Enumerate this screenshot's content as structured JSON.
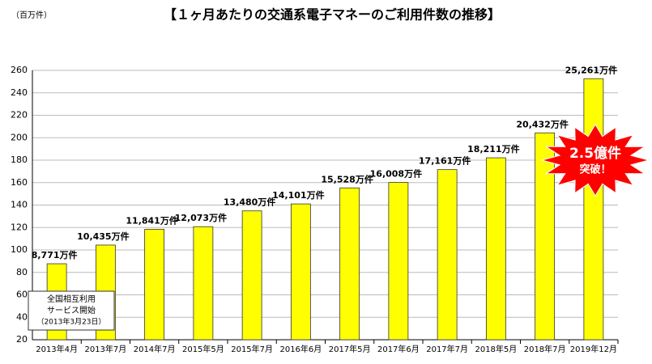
{
  "chart_data": {
    "type": "bar",
    "title": "【１ヶ月あたりの交通系電子マネーのご利用件数の推移】",
    "y_label": "（百万件）",
    "categories": [
      "2013年4月",
      "2013年7月",
      "2014年7月",
      "2015年5月",
      "2015年7月",
      "2016年6月",
      "2017年5月",
      "2017年6月",
      "2017年7月",
      "2018年5月",
      "2018年7月",
      "2019年12月"
    ],
    "values": [
      87.71,
      104.35,
      118.41,
      120.73,
      134.8,
      141.01,
      155.28,
      160.08,
      171.61,
      182.11,
      204.32,
      252.61
    ],
    "value_labels": [
      "8,771万件",
      "10,435万件",
      "11,841万件",
      "12,073万件",
      "13,480万件",
      "14,101万件",
      "15,528万件",
      "16,008万件",
      "17,161万件",
      "18,211万件",
      "20,432万件",
      "25,261万件"
    ],
    "color": "#ffff00",
    "ylim": [
      20,
      260
    ],
    "yticks": [
      20,
      40,
      60,
      80,
      100,
      120,
      140,
      160,
      180,
      200,
      220,
      240,
      260
    ],
    "grid": true,
    "annotations": {
      "service_start": [
        "全国相互利用",
        "サービス開始",
        "（2013年3月23日）"
      ],
      "burst": [
        "2.5億件",
        "突破！"
      ]
    }
  }
}
